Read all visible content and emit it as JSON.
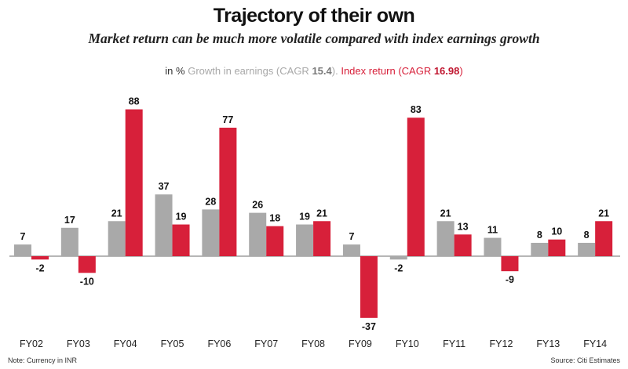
{
  "chart_data": {
    "type": "bar",
    "title": "Trajectory of their own",
    "subtitle": "Market return can be much more volatile compared with index earnings growth",
    "legend": {
      "unit": "in %",
      "series0_text": "Growth in earnings (CAGR ",
      "series0_cagr": "15.4",
      "series0_close": ").",
      "series1_text": "Index return (CAGR ",
      "series1_cagr": "16.98",
      "series1_close": ")"
    },
    "categories": [
      "FY02",
      "FY03",
      "FY04",
      "FY05",
      "FY06",
      "FY07",
      "FY08",
      "FY09",
      "FY10",
      "FY11",
      "FY12",
      "FY13",
      "FY14"
    ],
    "series": [
      {
        "name": "Growth in earnings",
        "color": "#a9a9a9",
        "values": [
          7,
          17,
          21,
          37,
          28,
          26,
          19,
          7,
          -2,
          21,
          11,
          8,
          8
        ]
      },
      {
        "name": "Index return",
        "color": "#d7203a",
        "values": [
          -2,
          -10,
          88,
          19,
          77,
          18,
          21,
          -37,
          83,
          13,
          -9,
          10,
          21
        ]
      }
    ],
    "ylim": [
      -45,
      95
    ],
    "grid": false,
    "legend_position": "top-center"
  },
  "footer": {
    "note": "Note: Currency in INR",
    "source": "Source: Citi Estimates"
  }
}
